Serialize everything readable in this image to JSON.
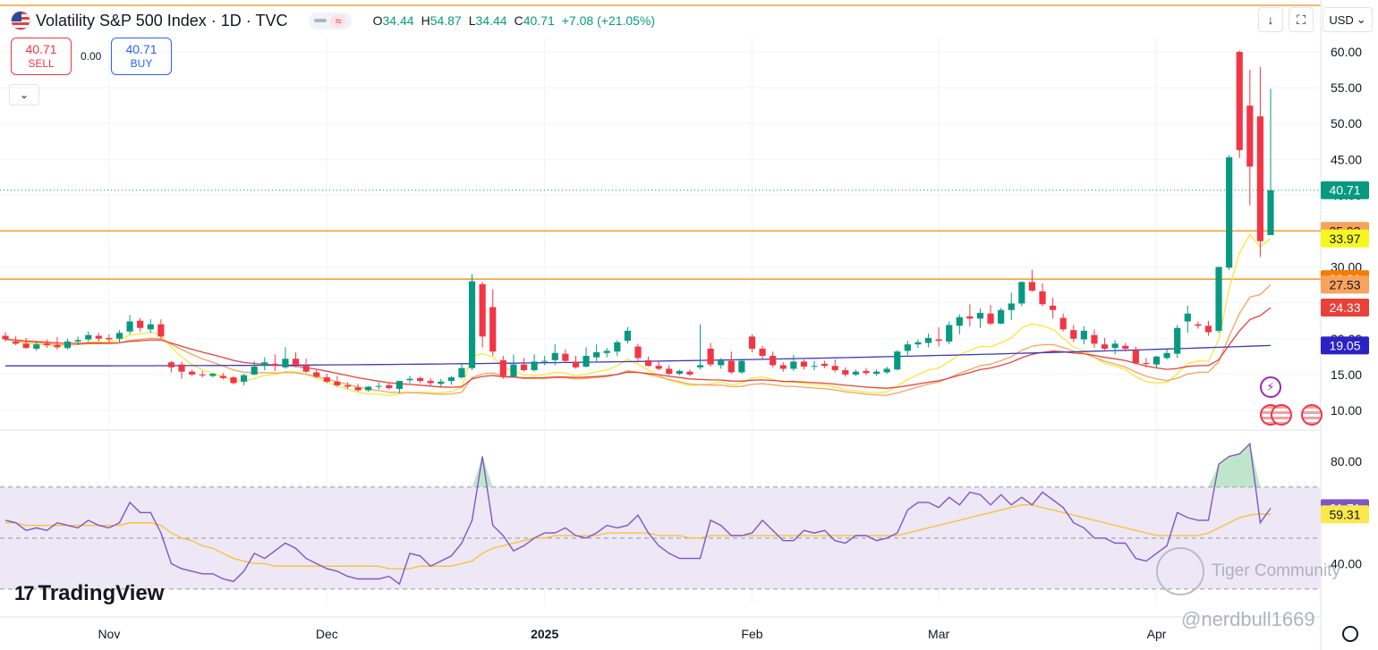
{
  "header": {
    "symbol_title": "Volatility S&P 500 Index · 1D · TVC",
    "flag_icon": "us-flag-icon",
    "ohlc": [
      {
        "k": "O",
        "v": "34.44"
      },
      {
        "k": "H",
        "v": "54.87"
      },
      {
        "k": "L",
        "v": "34.44"
      },
      {
        "k": "C",
        "v": "40.71"
      },
      {
        "k": "",
        "v": "+7.08 (+21.05%)"
      }
    ],
    "wave_glyph": "≈"
  },
  "trade": {
    "sell_price": "40.71",
    "sell_label": "SELL",
    "spread": "0.00",
    "buy_price": "40.71",
    "buy_label": "BUY"
  },
  "toolbar": {
    "collapse_glyph": "⌄",
    "download_glyph": "↓",
    "fullscreen_glyph": "⛶",
    "currency": "USD",
    "currency_chevron": "⌄"
  },
  "branding": {
    "tradingview": "TradingView",
    "logo_mark": "17",
    "watermark": "Tiger Community",
    "handle": "@nerdbull1669",
    "bolt_glyph": "⚡"
  },
  "colors": {
    "up": "#089981",
    "down": "#f23645",
    "sma_fast": "#f7e838",
    "sma_mid": "#f7a35c",
    "sma_slow": "#e8413a",
    "sma_long": "#3b3bbb",
    "hline": "#f7a035",
    "rsi": "#7e57c2",
    "rsi_ma": "#fbc02d",
    "rsi_band": "#ede7f6"
  },
  "chart_data": [
    {
      "type": "candlestick",
      "title": "Volatility S&P 500 Index · 1D · TVC",
      "x_ticks": [
        "Nov",
        "Dec",
        "2025",
        "Feb",
        "Mar",
        "Apr"
      ],
      "x_tick_index": [
        10,
        31,
        52,
        72,
        90,
        111
      ],
      "y_ticks": [
        "10.00",
        "15.00",
        "20.00",
        "25.00",
        "30.00",
        "35.00",
        "40.00",
        "45.00",
        "50.00",
        "55.00",
        "60.00"
      ],
      "y_tick_values": [
        10,
        15,
        20,
        25,
        30,
        35,
        40,
        45,
        50,
        55,
        60
      ],
      "ylim": [
        8.0,
        62.0
      ],
      "horizontal_lines": [
        35.03,
        28.3
      ],
      "candles": [
        [
          20.4,
          20.9,
          19.6,
          19.9
        ],
        [
          19.6,
          20.3,
          19.1,
          19.3
        ],
        [
          19.3,
          20.1,
          18.6,
          18.7
        ],
        [
          18.6,
          19.6,
          18.3,
          19.2
        ],
        [
          19.3,
          19.9,
          18.7,
          19.1
        ],
        [
          19.1,
          20.2,
          18.5,
          18.8
        ],
        [
          18.7,
          20.0,
          18.5,
          19.6
        ],
        [
          19.6,
          20.3,
          19.1,
          19.8
        ],
        [
          19.9,
          21.0,
          19.6,
          20.5
        ],
        [
          20.4,
          20.8,
          19.6,
          20.0
        ],
        [
          20.1,
          20.6,
          19.4,
          19.9
        ],
        [
          20.0,
          21.2,
          19.5,
          20.8
        ],
        [
          21.0,
          23.3,
          20.6,
          22.4
        ],
        [
          22.5,
          22.9,
          21.0,
          21.5
        ],
        [
          21.3,
          22.7,
          20.8,
          22.0
        ],
        [
          22.0,
          22.7,
          20.0,
          20.3
        ],
        [
          16.7,
          16.9,
          15.3,
          16.0
        ],
        [
          16.4,
          16.8,
          14.4,
          15.4
        ],
        [
          15.4,
          15.7,
          14.8,
          15.0
        ],
        [
          15.0,
          15.5,
          14.6,
          14.9
        ],
        [
          14.8,
          15.2,
          14.6,
          15.1
        ],
        [
          14.8,
          15.2,
          14.3,
          14.5
        ],
        [
          14.6,
          14.8,
          13.6,
          13.8
        ],
        [
          14.0,
          15.1,
          13.5,
          14.9
        ],
        [
          15.0,
          16.9,
          14.9,
          16.1
        ],
        [
          16.2,
          17.4,
          15.6,
          16.7
        ],
        [
          16.5,
          17.8,
          15.5,
          16.2
        ],
        [
          16.0,
          18.8,
          15.8,
          17.2
        ],
        [
          17.2,
          18.1,
          16.0,
          16.4
        ],
        [
          16.3,
          17.2,
          15.2,
          15.4
        ],
        [
          15.3,
          15.7,
          14.5,
          14.7
        ],
        [
          14.6,
          15.1,
          13.8,
          14.0
        ],
        [
          14.0,
          14.8,
          13.3,
          13.5
        ],
        [
          13.5,
          13.9,
          13.0,
          13.3
        ],
        [
          13.2,
          13.7,
          12.6,
          12.8
        ],
        [
          12.8,
          13.4,
          12.6,
          13.3
        ],
        [
          13.3,
          13.9,
          12.9,
          13.4
        ],
        [
          13.5,
          13.8,
          12.9,
          13.1
        ],
        [
          13.0,
          14.0,
          12.4,
          14.1
        ],
        [
          14.2,
          14.8,
          13.8,
          14.4
        ],
        [
          14.5,
          14.7,
          13.8,
          14.1
        ],
        [
          14.1,
          14.5,
          13.3,
          13.8
        ],
        [
          13.7,
          14.4,
          13.3,
          14.0
        ],
        [
          14.1,
          14.8,
          13.6,
          14.6
        ],
        [
          14.6,
          16.4,
          14.4,
          15.9
        ],
        [
          15.9,
          29.0,
          15.6,
          28.0
        ],
        [
          27.6,
          27.9,
          18.8,
          20.3
        ],
        [
          24.4,
          26.9,
          17.6,
          18.2
        ],
        [
          17.0,
          17.6,
          14.4,
          14.8
        ],
        [
          14.7,
          17.8,
          14.6,
          16.4
        ],
        [
          16.4,
          17.3,
          15.4,
          15.6
        ],
        [
          15.6,
          17.8,
          15.4,
          16.8
        ],
        [
          16.9,
          17.6,
          16.3,
          16.9
        ],
        [
          17.0,
          19.2,
          16.3,
          18.0
        ],
        [
          17.9,
          18.5,
          16.7,
          16.9
        ],
        [
          16.8,
          17.6,
          15.8,
          16.0
        ],
        [
          16.1,
          18.8,
          16.0,
          17.6
        ],
        [
          17.4,
          19.2,
          16.7,
          18.1
        ],
        [
          18.0,
          18.7,
          17.4,
          18.3
        ],
        [
          18.2,
          19.8,
          17.6,
          19.5
        ],
        [
          19.7,
          21.6,
          19.3,
          21.1
        ],
        [
          18.9,
          19.3,
          16.7,
          17.3
        ],
        [
          17.0,
          17.5,
          16.1,
          16.2
        ],
        [
          16.2,
          16.8,
          15.6,
          15.8
        ],
        [
          15.8,
          16.3,
          14.9,
          15.1
        ],
        [
          15.1,
          15.7,
          14.9,
          15.5
        ],
        [
          15.4,
          15.7,
          14.8,
          15.0
        ],
        [
          16.0,
          22.0,
          15.7,
          16.3
        ],
        [
          18.6,
          19.4,
          16.1,
          16.4
        ],
        [
          16.3,
          17.3,
          15.8,
          16.9
        ],
        [
          16.9,
          18.2,
          15.1,
          15.3
        ],
        [
          15.3,
          17.0,
          15.1,
          16.9
        ],
        [
          20.3,
          20.6,
          18.1,
          18.6
        ],
        [
          18.6,
          19.0,
          17.2,
          17.6
        ],
        [
          17.6,
          18.2,
          16.0,
          16.3
        ],
        [
          16.3,
          16.7,
          15.4,
          15.8
        ],
        [
          15.8,
          17.7,
          15.5,
          16.8
        ],
        [
          16.8,
          17.1,
          15.7,
          16.1
        ],
        [
          16.1,
          16.9,
          15.6,
          16.2
        ],
        [
          16.5,
          16.9,
          15.9,
          16.2
        ],
        [
          16.2,
          17.1,
          15.3,
          15.6
        ],
        [
          15.6,
          16.0,
          14.7,
          15.0
        ],
        [
          15.0,
          15.7,
          14.8,
          15.4
        ],
        [
          15.5,
          15.9,
          14.9,
          15.2
        ],
        [
          15.1,
          15.7,
          14.8,
          15.4
        ],
        [
          15.3,
          16.1,
          15.1,
          15.8
        ],
        [
          15.7,
          18.4,
          15.6,
          18.2
        ],
        [
          18.3,
          19.7,
          17.7,
          19.2
        ],
        [
          19.2,
          19.9,
          18.7,
          19.5
        ],
        [
          19.4,
          20.7,
          18.8,
          20.1
        ],
        [
          19.9,
          21.6,
          18.9,
          19.7
        ],
        [
          19.6,
          22.4,
          19.2,
          21.9
        ],
        [
          21.8,
          23.4,
          20.6,
          23.0
        ],
        [
          23.1,
          24.8,
          21.7,
          22.8
        ],
        [
          22.8,
          24.2,
          21.5,
          23.6
        ],
        [
          23.5,
          24.7,
          21.9,
          22.1
        ],
        [
          22.1,
          24.3,
          22.0,
          24.0
        ],
        [
          24.0,
          26.4,
          22.6,
          24.9
        ],
        [
          24.9,
          28.0,
          24.5,
          27.9
        ],
        [
          27.9,
          29.6,
          26.5,
          26.7
        ],
        [
          26.6,
          27.7,
          24.5,
          24.8
        ],
        [
          24.6,
          25.7,
          22.8,
          24.0
        ],
        [
          22.9,
          23.5,
          21.0,
          21.3
        ],
        [
          21.2,
          21.9,
          19.5,
          20.0
        ],
        [
          19.9,
          21.7,
          19.2,
          21.1
        ],
        [
          20.5,
          21.3,
          18.7,
          19.3
        ],
        [
          19.2,
          20.1,
          18.2,
          18.6
        ],
        [
          18.7,
          19.8,
          17.8,
          19.3
        ],
        [
          19.0,
          19.4,
          18.2,
          18.6
        ],
        [
          18.4,
          18.9,
          16.4,
          16.6
        ],
        [
          16.6,
          17.3,
          16.0,
          16.5
        ],
        [
          16.4,
          17.6,
          16.0,
          17.5
        ],
        [
          17.3,
          18.5,
          17.1,
          18.0
        ],
        [
          17.9,
          21.9,
          17.3,
          21.5
        ],
        [
          22.4,
          24.6,
          20.8,
          23.5
        ],
        [
          22.0,
          22.4,
          21.4,
          21.8
        ],
        [
          21.8,
          22.5,
          20.4,
          20.9
        ],
        [
          21.1,
          30.0,
          20.8,
          30.0
        ],
        [
          29.9,
          45.6,
          29.6,
          45.3
        ],
        [
          60.0,
          60.2,
          45.2,
          46.3
        ],
        [
          52.5,
          57.5,
          38.6,
          44.0
        ],
        [
          51.0,
          57.9,
          31.4,
          33.6
        ],
        [
          34.44,
          54.87,
          34.44,
          40.71
        ]
      ],
      "price_labels": [
        {
          "value": 40.71,
          "text": "40.71",
          "bg": "#089981",
          "fg": "#ffffff"
        },
        {
          "value": 35.03,
          "text": "35.03",
          "bg": "#f7a35c",
          "fg": "#131722"
        },
        {
          "value": 33.97,
          "text": "33.97",
          "bg": "#f7f720",
          "fg": "#131722"
        },
        {
          "value": 28.3,
          "text": "28.30",
          "bg": "#f57c00",
          "fg": "#ffffff"
        },
        {
          "value": 27.53,
          "text": "27.53",
          "bg": "#f7a35c",
          "fg": "#131722"
        },
        {
          "value": 24.33,
          "text": "24.33",
          "bg": "#e8413a",
          "fg": "#ffffff"
        },
        {
          "value": 19.05,
          "text": "19.05",
          "bg": "#2b22c5",
          "fg": "#ffffff"
        }
      ],
      "series": [
        {
          "key": "sma_fast",
          "last": 33.97,
          "start": 19.6,
          "mode": "fast"
        },
        {
          "key": "sma_mid",
          "last": 27.53,
          "start": 19.4,
          "mode": "mid"
        },
        {
          "key": "sma_slow",
          "last": 24.33,
          "start": 18.9,
          "mode": "slow"
        },
        {
          "key": "sma_long",
          "last": 19.05,
          "start": 16.2,
          "mode": "long"
        }
      ]
    },
    {
      "type": "line",
      "title": "",
      "y_ticks": [
        "40.00",
        "80.00"
      ],
      "y_tick_values": [
        40,
        80
      ],
      "ylim": [
        24.0,
        92.0
      ],
      "band": [
        30,
        70
      ],
      "mid_line": 50,
      "rsi_labels": [
        {
          "value": 61.71,
          "text": "61.71",
          "bg": "#7e57c2",
          "fg": "#ffffff"
        },
        {
          "value": 59.31,
          "text": "59.31",
          "bg": "#fbe84a",
          "fg": "#131722"
        }
      ],
      "rsi": [
        57,
        56,
        53,
        54,
        53,
        56,
        55,
        54,
        57,
        55,
        54,
        56,
        64,
        60,
        60,
        52,
        40,
        38,
        37,
        36,
        36,
        34,
        33,
        37,
        44,
        42,
        45,
        48,
        46,
        42,
        40,
        38,
        37,
        35,
        34,
        34,
        34,
        35,
        32,
        44,
        43,
        39,
        41,
        43,
        48,
        57,
        82,
        55,
        51,
        45,
        47,
        50,
        52,
        52,
        54,
        51,
        50,
        52,
        55,
        54,
        55,
        59,
        52,
        47,
        44,
        42,
        42,
        42,
        57,
        55,
        51,
        51,
        52,
        57,
        53,
        49,
        49,
        53,
        52,
        53,
        49,
        48,
        51,
        51,
        49,
        50,
        52,
        61,
        64,
        64,
        62,
        66,
        63,
        68,
        67,
        63,
        67,
        63,
        66,
        63,
        68,
        65,
        62,
        56,
        54,
        50,
        50,
        48,
        48,
        42,
        41,
        44,
        47,
        60,
        58,
        57,
        57,
        79,
        82,
        83,
        87,
        56,
        61.71
      ],
      "rsi_ma": [
        56,
        56,
        55,
        55,
        55,
        55,
        55,
        55,
        55,
        55,
        55,
        55,
        56,
        56,
        56,
        55,
        52,
        50,
        49,
        47,
        46,
        44,
        42,
        41,
        40,
        40,
        39,
        39,
        39,
        39,
        39,
        39,
        39,
        39,
        39,
        39,
        39,
        38,
        38,
        38,
        39,
        39,
        39,
        39,
        40,
        41,
        44,
        46,
        47,
        48,
        49,
        50,
        50,
        51,
        51,
        51,
        51,
        51,
        52,
        52,
        52,
        52,
        52,
        51,
        51,
        51,
        50,
        50,
        51,
        51,
        51,
        51,
        51,
        51,
        51,
        51,
        51,
        51,
        51,
        51,
        51,
        51,
        51,
        51,
        51,
        51,
        51,
        52,
        53,
        54,
        55,
        56,
        57,
        58,
        59,
        60,
        61,
        62,
        63,
        63,
        62,
        61,
        60,
        59,
        58,
        57,
        56,
        55,
        54,
        53,
        52,
        51,
        51,
        51,
        51,
        51,
        52,
        54,
        56,
        58,
        59,
        59.5,
        59.31
      ]
    }
  ]
}
